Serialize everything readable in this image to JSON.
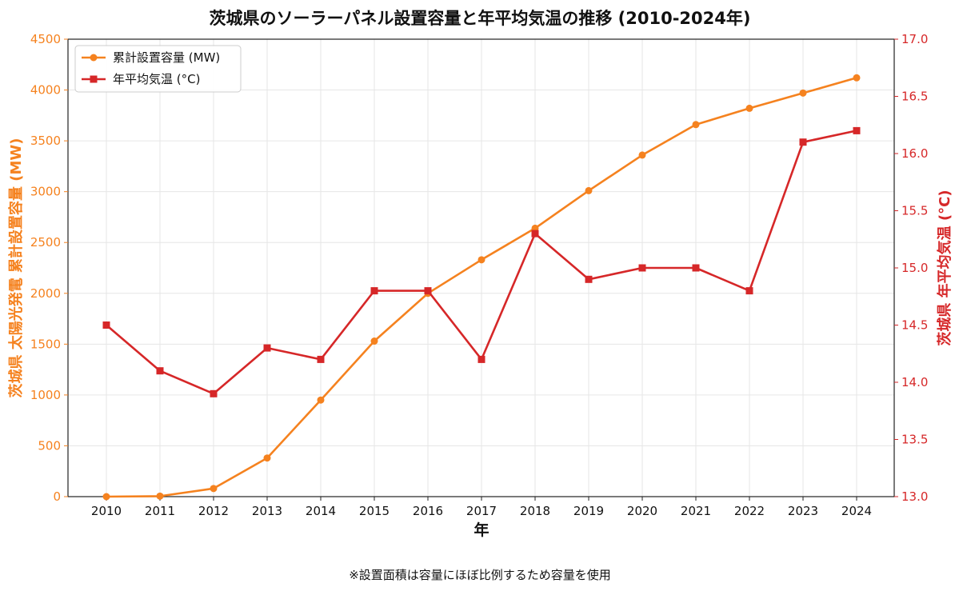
{
  "chart_data": {
    "type": "line",
    "title": "茨城県のソーラーパネル設置容量と年平均気温の推移 (2010-2024年)",
    "xlabel": "年",
    "ylabel_left": "茨城県 太陽光発電 累計設置容量 (MW)",
    "ylabel_right": "茨城県 年平均気温 (°C)",
    "x": [
      2010,
      2011,
      2012,
      2013,
      2014,
      2015,
      2016,
      2017,
      2018,
      2019,
      2020,
      2021,
      2022,
      2023,
      2024
    ],
    "ylim_left": [
      0,
      4500
    ],
    "ylim_right": [
      13.0,
      17.0
    ],
    "yticks_left": [
      0,
      500,
      1000,
      1500,
      2000,
      2500,
      3000,
      3500,
      4000,
      4500
    ],
    "yticks_right": [
      13.0,
      13.5,
      14.0,
      14.5,
      15.0,
      15.5,
      16.0,
      16.5,
      17.0
    ],
    "grid": true,
    "legend_position": "top-left",
    "series": [
      {
        "name": "累計設置容量 (MW)",
        "axis": "left",
        "marker": "circle",
        "color": "#f5821f",
        "values": [
          0,
          5,
          80,
          380,
          950,
          1530,
          2000,
          2330,
          2640,
          3010,
          3360,
          3660,
          3820,
          3970,
          4120
        ]
      },
      {
        "name": "年平均気温 (°C)",
        "axis": "right",
        "marker": "square",
        "color": "#d62728",
        "values": [
          14.5,
          14.1,
          13.9,
          14.3,
          14.2,
          14.8,
          14.8,
          14.2,
          15.3,
          14.9,
          15.0,
          15.0,
          14.8,
          16.1,
          16.2
        ]
      }
    ]
  },
  "footnote": "※設置面積は容量にほぼ比例するため容量を使用",
  "colors": {
    "left_axis": "#f5821f",
    "right_axis": "#d62728",
    "grid": "#e6e6e6",
    "axis": "#222222"
  }
}
